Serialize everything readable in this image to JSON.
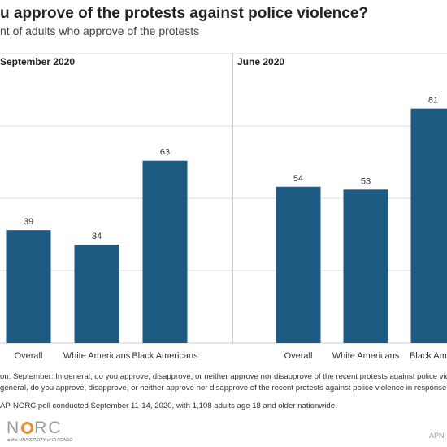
{
  "title": "u approve of the protests against police violence?",
  "subtitle": "nt of adults who approve of the protests",
  "chart_data": [
    {
      "type": "bar",
      "title": "September 2020",
      "categories": [
        "Overall",
        "White Americans",
        "Black Americans"
      ],
      "values": [
        39,
        34,
        63
      ],
      "ylim": [
        0,
        100
      ],
      "grid": true,
      "bar_color": "#1d5b82"
    },
    {
      "type": "bar",
      "title": "June 2020",
      "categories": [
        "Overall",
        "White Americans",
        "Black Ameri"
      ],
      "values": [
        54,
        53,
        81
      ],
      "ylim": [
        0,
        100
      ],
      "grid": true,
      "bar_color": "#1d5b82"
    }
  ],
  "notes": {
    "question": "on: September: In general, do you approve, disapprove, or neither approve nor disapprove of the recent protests against police violenc",
    "question2": "general, do you approve, disapprove, or neither approve nor disapprove of the recent protests against police violence in response to",
    "source": "AP-NORC poll conducted September 11-14, 2020, with 1,108 adults age 18 and older nationwide."
  },
  "logo": {
    "name": "NORC",
    "tagline": "at the UNIVERSITY of CHICAGO"
  },
  "corner_mark": "APN"
}
